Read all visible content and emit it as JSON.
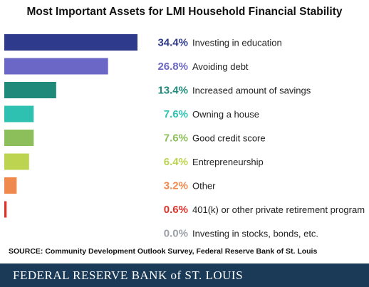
{
  "title": "Most Important Assets for LMI Household Financial Stability",
  "source": "SOURCE: Community Development Outlook Survey, Federal Reserve Bank of St. Louis",
  "footer": "FEDERAL RESERVE BANK of ST. LOUIS",
  "chart_data": {
    "type": "bar",
    "orientation": "horizontal",
    "title": "Most Important Assets for LMI Household Financial Stability",
    "categories": [
      "Investing in education",
      "Avoiding debt",
      "Increased amount of savings",
      "Owning a house",
      "Good credit score",
      "Entrepreneurship",
      "Other",
      "401(k) or other private retirement program",
      "Investing in stocks, bonds, etc."
    ],
    "values": [
      34.4,
      26.8,
      13.4,
      7.6,
      7.6,
      6.4,
      3.2,
      0.6,
      0.0
    ],
    "value_labels": [
      "34.4%",
      "26.8%",
      "13.4%",
      "7.6%",
      "7.6%",
      "6.4%",
      "3.2%",
      "0.6%",
      "0.0%"
    ],
    "colors": [
      "#2e3a8c",
      "#6b67c6",
      "#1f8a7a",
      "#2ec0b0",
      "#8cbf5a",
      "#bcd44f",
      "#f0894e",
      "#e0322b",
      "#9aa0a6"
    ],
    "xlim": [
      0,
      34.4
    ],
    "grid": false,
    "legend": "none"
  }
}
